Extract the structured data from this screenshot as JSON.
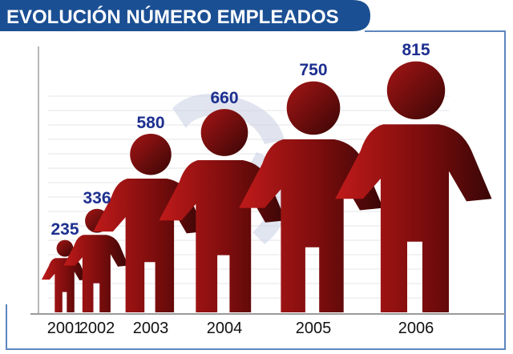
{
  "chart_data": {
    "type": "bar",
    "title": "EVOLUCIÓN NÚMERO EMPLEADOS",
    "categories": [
      "2001",
      "2002",
      "2003",
      "2004",
      "2005",
      "2006"
    ],
    "values": [
      235,
      336,
      580,
      660,
      750,
      815
    ],
    "xlabel": "",
    "ylabel": "",
    "ylim": [
      0,
      815
    ],
    "grid": true,
    "legend": "none",
    "mark": "person-pictogram"
  },
  "colors": {
    "title_band": "#1b4f93",
    "frame": "#5d86be",
    "figure_light": "#c01a1a",
    "figure_dark": "#3a0606",
    "value_label": "#1d2f8f",
    "gridline": "#e6e6ea",
    "watermark": "#c9cfe3"
  }
}
